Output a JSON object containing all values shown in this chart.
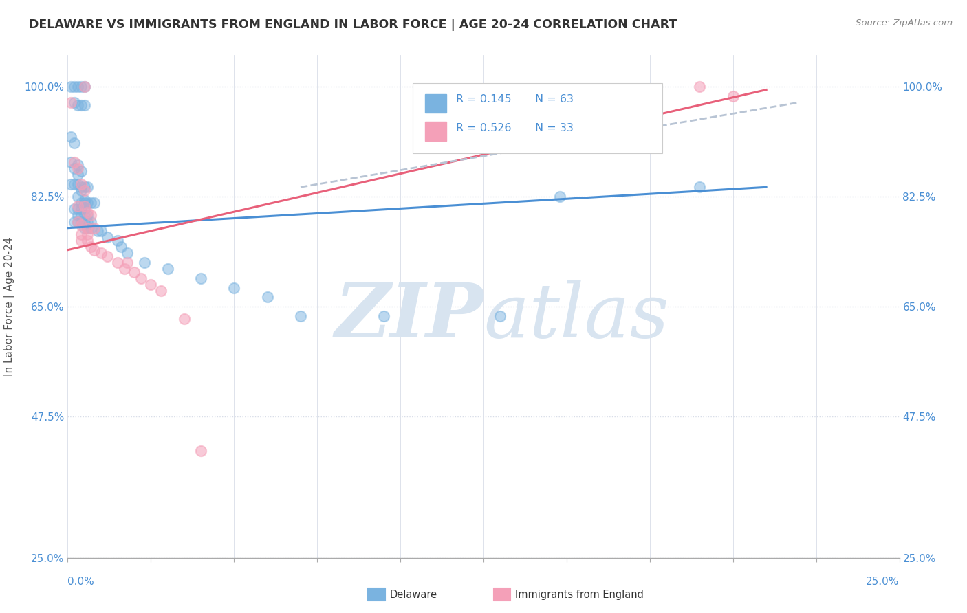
{
  "title": "DELAWARE VS IMMIGRANTS FROM ENGLAND IN LABOR FORCE | AGE 20-24 CORRELATION CHART",
  "source_text": "Source: ZipAtlas.com",
  "ylabel": "In Labor Force | Age 20-24",
  "xlim": [
    0.0,
    0.25
  ],
  "ylim": [
    0.25,
    1.05
  ],
  "ytick_labels": [
    "25.0%",
    "47.5%",
    "65.0%",
    "82.5%",
    "100.0%"
  ],
  "ytick_values": [
    0.25,
    0.475,
    0.65,
    0.825,
    1.0
  ],
  "xtick_values": [
    0.0,
    0.025,
    0.05,
    0.075,
    0.1,
    0.125,
    0.15,
    0.175,
    0.2,
    0.225,
    0.25
  ],
  "legend_r_blue": "R = 0.145",
  "legend_n_blue": "N = 63",
  "legend_r_pink": "R = 0.526",
  "legend_n_pink": "N = 33",
  "blue_color": "#7ab3e0",
  "pink_color": "#f4a0b8",
  "trend_blue": "#4a8fd4",
  "trend_pink": "#e8607a",
  "trend_dashed_color": "#b8c4d4",
  "watermark_color": "#d8e4f0",
  "title_color": "#333333",
  "axis_label_color": "#4a8fd4",
  "background_color": "#ffffff",
  "grid_color": "#d8dde8",
  "blue_scatter": [
    [
      0.001,
      1.0
    ],
    [
      0.002,
      1.0
    ],
    [
      0.003,
      1.0
    ],
    [
      0.004,
      1.0
    ],
    [
      0.005,
      1.0
    ],
    [
      0.002,
      0.975
    ],
    [
      0.003,
      0.97
    ],
    [
      0.004,
      0.97
    ],
    [
      0.005,
      0.97
    ],
    [
      0.001,
      0.92
    ],
    [
      0.002,
      0.91
    ],
    [
      0.001,
      0.88
    ],
    [
      0.002,
      0.87
    ],
    [
      0.003,
      0.875
    ],
    [
      0.004,
      0.865
    ],
    [
      0.003,
      0.86
    ],
    [
      0.001,
      0.845
    ],
    [
      0.002,
      0.845
    ],
    [
      0.003,
      0.845
    ],
    [
      0.004,
      0.84
    ],
    [
      0.005,
      0.84
    ],
    [
      0.006,
      0.84
    ],
    [
      0.004,
      0.835
    ],
    [
      0.003,
      0.825
    ],
    [
      0.005,
      0.82
    ],
    [
      0.004,
      0.815
    ],
    [
      0.005,
      0.815
    ],
    [
      0.006,
      0.815
    ],
    [
      0.007,
      0.815
    ],
    [
      0.008,
      0.815
    ],
    [
      0.002,
      0.805
    ],
    [
      0.003,
      0.805
    ],
    [
      0.004,
      0.805
    ],
    [
      0.005,
      0.805
    ],
    [
      0.003,
      0.795
    ],
    [
      0.004,
      0.795
    ],
    [
      0.005,
      0.795
    ],
    [
      0.006,
      0.795
    ],
    [
      0.002,
      0.785
    ],
    [
      0.003,
      0.785
    ],
    [
      0.004,
      0.785
    ],
    [
      0.005,
      0.785
    ],
    [
      0.006,
      0.785
    ],
    [
      0.007,
      0.785
    ],
    [
      0.005,
      0.775
    ],
    [
      0.006,
      0.775
    ],
    [
      0.007,
      0.775
    ],
    [
      0.009,
      0.77
    ],
    [
      0.01,
      0.77
    ],
    [
      0.012,
      0.76
    ],
    [
      0.015,
      0.755
    ],
    [
      0.016,
      0.745
    ],
    [
      0.018,
      0.735
    ],
    [
      0.023,
      0.72
    ],
    [
      0.03,
      0.71
    ],
    [
      0.04,
      0.695
    ],
    [
      0.05,
      0.68
    ],
    [
      0.06,
      0.665
    ],
    [
      0.07,
      0.635
    ],
    [
      0.095,
      0.635
    ],
    [
      0.13,
      0.635
    ],
    [
      0.148,
      0.825
    ],
    [
      0.19,
      0.84
    ]
  ],
  "pink_scatter": [
    [
      0.001,
      0.975
    ],
    [
      0.005,
      1.0
    ],
    [
      0.19,
      1.0
    ],
    [
      0.2,
      0.985
    ],
    [
      0.002,
      0.88
    ],
    [
      0.003,
      0.87
    ],
    [
      0.004,
      0.845
    ],
    [
      0.005,
      0.835
    ],
    [
      0.003,
      0.81
    ],
    [
      0.005,
      0.81
    ],
    [
      0.006,
      0.8
    ],
    [
      0.007,
      0.795
    ],
    [
      0.003,
      0.785
    ],
    [
      0.004,
      0.78
    ],
    [
      0.006,
      0.775
    ],
    [
      0.008,
      0.775
    ],
    [
      0.004,
      0.765
    ],
    [
      0.006,
      0.765
    ],
    [
      0.004,
      0.755
    ],
    [
      0.006,
      0.755
    ],
    [
      0.007,
      0.745
    ],
    [
      0.008,
      0.74
    ],
    [
      0.01,
      0.735
    ],
    [
      0.012,
      0.73
    ],
    [
      0.015,
      0.72
    ],
    [
      0.018,
      0.72
    ],
    [
      0.017,
      0.71
    ],
    [
      0.02,
      0.705
    ],
    [
      0.022,
      0.695
    ],
    [
      0.025,
      0.685
    ],
    [
      0.028,
      0.675
    ],
    [
      0.035,
      0.63
    ],
    [
      0.04,
      0.42
    ]
  ],
  "blue_trend_x": [
    0.0,
    0.21
  ],
  "blue_trend_y": [
    0.775,
    0.84
  ],
  "pink_trend_x": [
    0.0,
    0.21
  ],
  "pink_trend_y": [
    0.74,
    0.995
  ],
  "dashed_trend_x": [
    0.07,
    0.22
  ],
  "dashed_trend_y": [
    0.84,
    0.975
  ]
}
